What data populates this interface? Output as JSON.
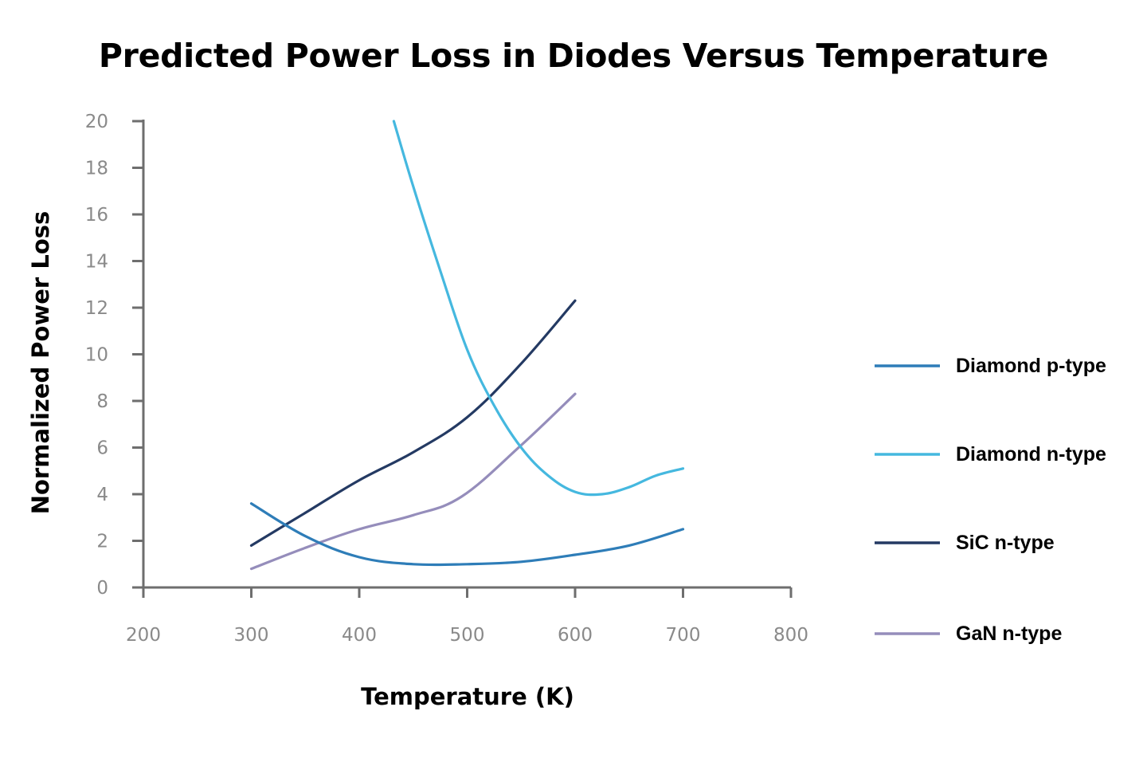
{
  "chart_data": {
    "type": "line",
    "title": "Predicted Power Loss in Diodes Versus Temperature",
    "xlabel": "Temperature (K)",
    "ylabel": "Normalized Power Loss",
    "xlim": [
      200,
      800
    ],
    "ylim": [
      0,
      20
    ],
    "x_ticks": [
      "200",
      "300",
      "400",
      "500",
      "600",
      "700",
      "800"
    ],
    "y_ticks": [
      "0",
      "2",
      "4",
      "6",
      "8",
      "10",
      "12",
      "14",
      "16",
      "18",
      "20"
    ],
    "grid": false,
    "legend_position": "right",
    "series": [
      {
        "name": "Diamond p-type",
        "color": "#2e7db8",
        "x": [
          300,
          350,
          400,
          450,
          500,
          550,
          600,
          650,
          700
        ],
        "y": [
          3.6,
          2.2,
          1.3,
          1.0,
          1.0,
          1.1,
          1.4,
          1.8,
          2.5
        ]
      },
      {
        "name": "Diamond n-type",
        "color": "#45b8df",
        "x": [
          432,
          450,
          475,
          500,
          525,
          550,
          575,
          600,
          625,
          650,
          675,
          700
        ],
        "y": [
          20.0,
          17.2,
          13.6,
          10.2,
          7.8,
          6.0,
          4.8,
          4.1,
          4.0,
          4.3,
          4.8,
          5.1
        ]
      },
      {
        "name": "SiC n-type",
        "color": "#243a63",
        "x": [
          300,
          350,
          400,
          450,
          500,
          550,
          600
        ],
        "y": [
          1.8,
          3.2,
          4.6,
          5.8,
          7.3,
          9.6,
          12.3
        ]
      },
      {
        "name": "GaN n-type",
        "color": "#958dbb",
        "x": [
          300,
          350,
          400,
          450,
          495,
          550,
          600
        ],
        "y": [
          0.8,
          1.7,
          2.5,
          3.1,
          3.9,
          6.1,
          8.3
        ]
      }
    ]
  }
}
